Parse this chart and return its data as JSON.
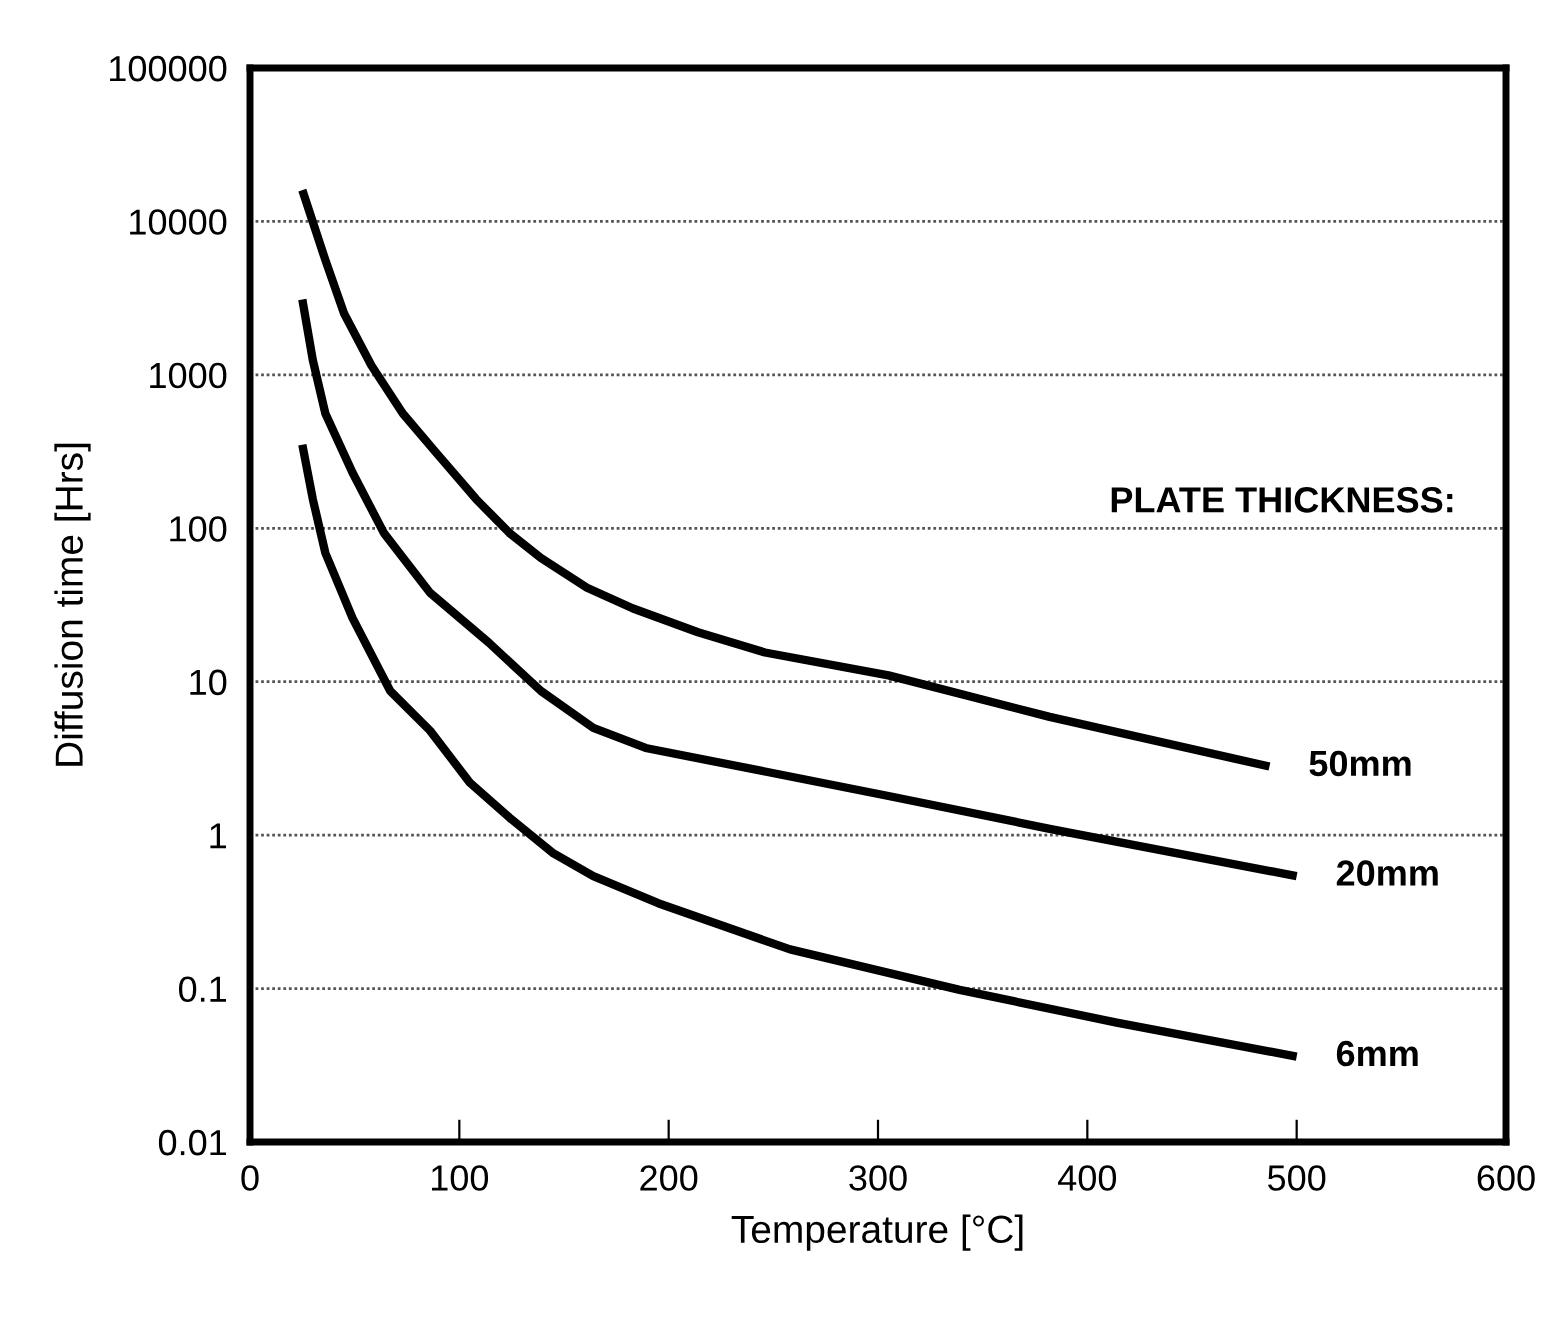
{
  "chart_data": {
    "type": "line",
    "xlabel": "Temperature [°C]",
    "ylabel": "Diffusion time [Hrs]",
    "log": "y",
    "xlim": [
      0,
      600
    ],
    "xticks": [
      0,
      100,
      200,
      300,
      400,
      500,
      600
    ],
    "ylim": [
      0.01,
      100000
    ],
    "yticks": [
      0.01,
      0.1,
      1,
      10,
      100,
      1000,
      10000,
      100000
    ],
    "grid": "y",
    "annotations": [
      "PLATE THICKNESS:"
    ],
    "series": [
      {
        "name": "50mm",
        "color": "#000000",
        "x": [
          25,
          36,
          45,
          58,
          73,
          89,
          108,
          124,
          139,
          161,
          183,
          214,
          246,
          305,
          382,
          487
        ],
        "values": [
          16000,
          5600,
          2500,
          1150,
          560,
          310,
          155,
          93,
          64,
          41,
          30,
          21,
          15.5,
          11,
          5.9,
          2.8
        ]
      },
      {
        "name": "20mm",
        "color": "#000000",
        "x": [
          25,
          30,
          36,
          49,
          64,
          86,
          114,
          139,
          164,
          189,
          246,
          305,
          382,
          500
        ],
        "values": [
          3100,
          1250,
          560,
          230,
          93,
          38,
          18,
          8.7,
          5.0,
          3.7,
          2.6,
          1.8,
          1.1,
          0.54
        ]
      },
      {
        "name": "6mm",
        "color": "#000000",
        "x": [
          25,
          30,
          36,
          49,
          67,
          86,
          105,
          124,
          145,
          164,
          195,
          258,
          339,
          414,
          500
        ],
        "values": [
          350,
          155,
          69,
          26,
          8.7,
          4.8,
          2.2,
          1.3,
          0.76,
          0.54,
          0.36,
          0.18,
          0.098,
          0.06,
          0.036
        ]
      }
    ]
  }
}
